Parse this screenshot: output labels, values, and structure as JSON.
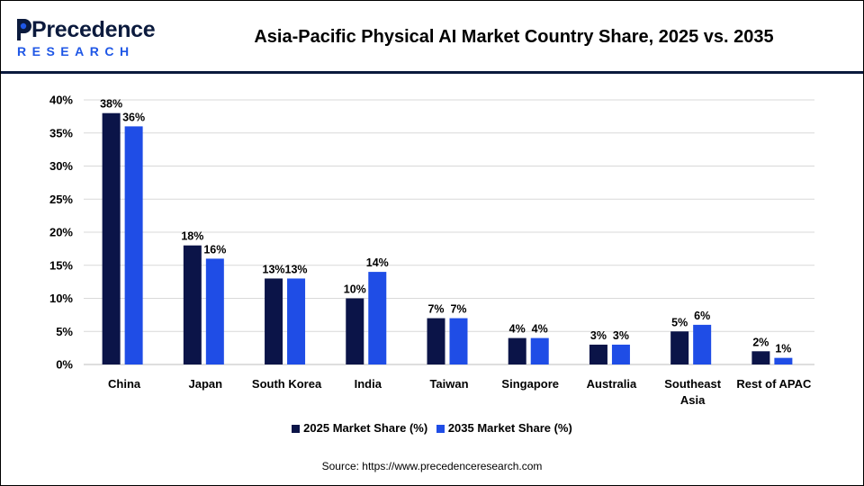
{
  "header": {
    "logo_text": "Precedence",
    "logo_sub": "RESEARCH",
    "title": "Asia-Pacific Physical AI Market Country Share, 2025 vs. 2035"
  },
  "chart_data": {
    "type": "bar",
    "title": "Asia-Pacific Physical AI Market Country Share, 2025 vs. 2035",
    "xlabel": "",
    "ylabel": "",
    "ylim": [
      0,
      40
    ],
    "yticks": [
      "0%",
      "5%",
      "10%",
      "15%",
      "20%",
      "25%",
      "30%",
      "35%",
      "40%"
    ],
    "grid": true,
    "legend_position": "bottom",
    "categories": [
      [
        "China"
      ],
      [
        "Japan"
      ],
      [
        "South Korea"
      ],
      [
        "India"
      ],
      [
        "Taiwan"
      ],
      [
        "Singapore"
      ],
      [
        "Australia"
      ],
      [
        "Southeast",
        "Asia"
      ],
      [
        "Rest of APAC"
      ]
    ],
    "series": [
      {
        "name": "2025 Market Share (%)",
        "color": "#0b1448",
        "values": [
          38,
          18,
          13,
          10,
          7,
          4,
          3,
          5,
          2
        ],
        "labels": [
          "38%",
          "18%",
          "13%",
          "10%",
          "7%",
          "4%",
          "3%",
          "5%",
          "2%"
        ]
      },
      {
        "name": "2035 Market Share (%)",
        "color": "#1f4de6",
        "values": [
          36,
          16,
          13,
          14,
          7,
          4,
          3,
          6,
          1
        ],
        "labels": [
          "36%",
          "16%",
          "13%",
          "14%",
          "7%",
          "4%",
          "3%",
          "6%",
          "1%"
        ]
      }
    ]
  },
  "legend": {
    "items": [
      "2025 Market Share (%)",
      "2035 Market Share (%)"
    ]
  },
  "source": "Source: https://www.precedenceresearch.com"
}
